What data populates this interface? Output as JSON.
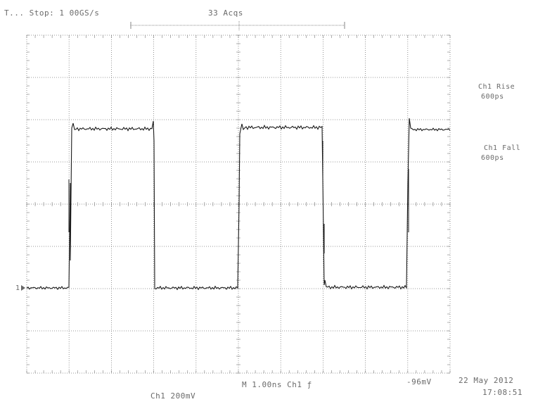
{
  "header": {
    "status": "T...  Stop: 1 00GS/s",
    "acquisitions": "33 Acqs"
  },
  "measurements": {
    "ch1_rise": "Ch1 Rise",
    "ch1_rise_value": "600ps",
    "ch1_fall": "Ch1 Fall",
    "ch1_fall_value": "600ps"
  },
  "footer": {
    "ch1_scale": "Ch1   200mV",
    "timebase_trigger": "M 1.00ns  Ch1 ƒ",
    "trigger_level": "-96mV",
    "date": "22 May 2012",
    "time": "17:08:51"
  },
  "channel_marker": "1",
  "colors": {
    "grid": "#7a7a7a",
    "trace": "#1a1a1a",
    "text": "#6a6a6a"
  }
}
